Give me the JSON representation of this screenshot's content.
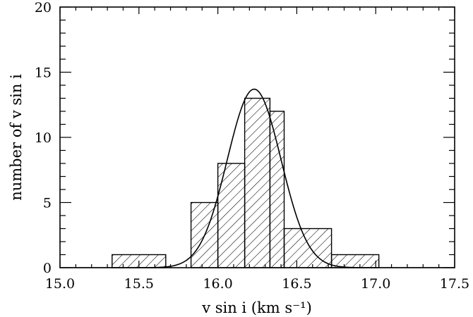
{
  "chart_data": {
    "type": "bar",
    "subtype": "histogram",
    "xlabel": "v sin i (km s⁻¹)",
    "ylabel": "number of v sin i",
    "xlim": [
      15.0,
      17.5
    ],
    "ylim": [
      0,
      20
    ],
    "x_tick_labels": [
      "15.0",
      "15.5",
      "16.0",
      "16.5",
      "17.0",
      "17.5"
    ],
    "y_tick_labels": [
      "0",
      "5",
      "10",
      "15",
      "20"
    ],
    "bins": [
      {
        "x0": 15.33,
        "x1": 15.67,
        "count": 1
      },
      {
        "x0": 15.67,
        "x1": 15.83,
        "count": 0
      },
      {
        "x0": 15.83,
        "x1": 16.0,
        "count": 5
      },
      {
        "x0": 16.0,
        "x1": 16.17,
        "count": 8
      },
      {
        "x0": 16.17,
        "x1": 16.33,
        "count": 13
      },
      {
        "x0": 16.33,
        "x1": 16.42,
        "count": 12
      },
      {
        "x0": 16.42,
        "x1": 16.72,
        "count": 3
      },
      {
        "x0": 16.72,
        "x1": 17.02,
        "count": 1
      }
    ],
    "fit_curve": {
      "type": "gaussian",
      "mean": 16.23,
      "sigma": 0.17,
      "amplitude": 13.7
    },
    "fill": "diagonal-hatch",
    "grid": false,
    "legend": "none",
    "colors": {
      "ink": "#000000",
      "background": "#ffffff"
    }
  }
}
